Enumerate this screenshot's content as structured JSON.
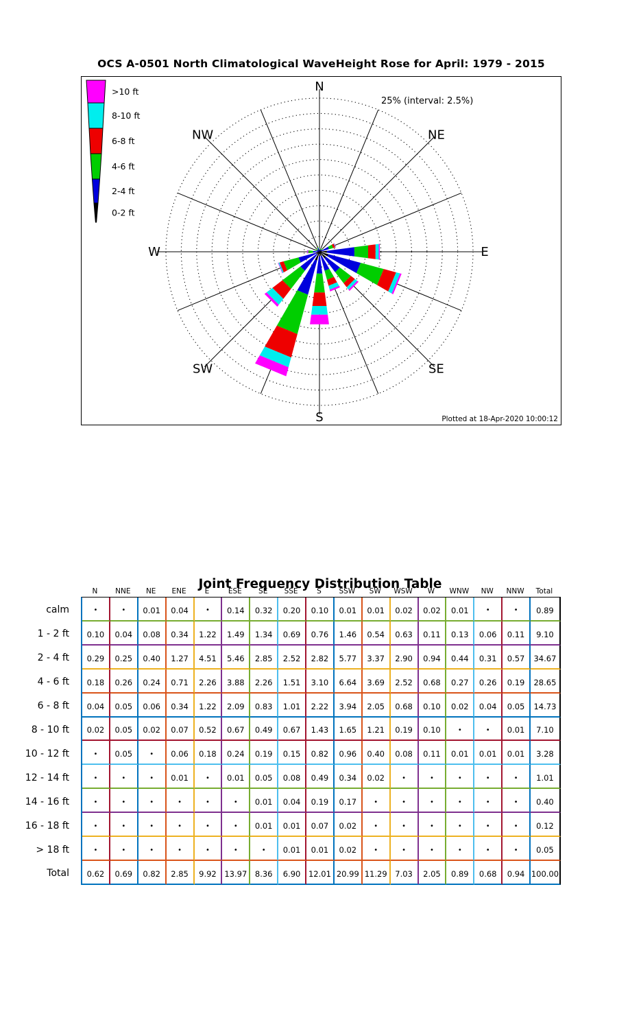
{
  "wave_rose": {
    "title": "OCS A-0501 North Climatological WaveHeight Rose for April: 1979 - 2015",
    "scale_label": "25% (interval: 2.5%)",
    "plotted_at": "Plotted at 18-Apr-2020 10:00:12",
    "compass_labels": [
      "N",
      "NE",
      "E",
      "SE",
      "S",
      "SW",
      "W",
      "NW"
    ]
  },
  "chart_data": {
    "type": "windrose+table",
    "table_title": "Joint Frequency Distribution Table",
    "directions": [
      "N",
      "NNE",
      "NE",
      "ENE",
      "E",
      "ESE",
      "SE",
      "SSE",
      "S",
      "SSW",
      "SW",
      "WSW",
      "W",
      "WNW",
      "NW",
      "NNW"
    ],
    "total_label": "Total",
    "less_than_marker": "•",
    "rows": [
      {
        "label": "calm",
        "cells": [
          "•",
          "•",
          "0.01",
          "0.04",
          "•",
          "0.14",
          "0.32",
          "0.20",
          "0.10",
          "0.01",
          "0.01",
          "0.02",
          "0.02",
          "0.01",
          "•",
          "•"
        ],
        "total": "0.89"
      },
      {
        "label": "1 - 2 ft",
        "cells": [
          "0.10",
          "0.04",
          "0.08",
          "0.34",
          "1.22",
          "1.49",
          "1.34",
          "0.69",
          "0.76",
          "1.46",
          "0.54",
          "0.63",
          "0.11",
          "0.13",
          "0.06",
          "0.11"
        ],
        "total": "9.10"
      },
      {
        "label": "2 - 4 ft",
        "cells": [
          "0.29",
          "0.25",
          "0.40",
          "1.27",
          "4.51",
          "5.46",
          "2.85",
          "2.52",
          "2.82",
          "5.77",
          "3.37",
          "2.90",
          "0.94",
          "0.44",
          "0.31",
          "0.57"
        ],
        "total": "34.67"
      },
      {
        "label": "4 - 6 ft",
        "cells": [
          "0.18",
          "0.26",
          "0.24",
          "0.71",
          "2.26",
          "3.88",
          "2.26",
          "1.51",
          "3.10",
          "6.64",
          "3.69",
          "2.52",
          "0.68",
          "0.27",
          "0.26",
          "0.19"
        ],
        "total": "28.65"
      },
      {
        "label": "6 - 8 ft",
        "cells": [
          "0.04",
          "0.05",
          "0.06",
          "0.34",
          "1.22",
          "2.09",
          "0.83",
          "1.01",
          "2.22",
          "3.94",
          "2.05",
          "0.68",
          "0.10",
          "0.02",
          "0.04",
          "0.05"
        ],
        "total": "14.73"
      },
      {
        "label": "8 - 10 ft",
        "cells": [
          "0.02",
          "0.05",
          "0.02",
          "0.07",
          "0.52",
          "0.67",
          "0.49",
          "0.67",
          "1.43",
          "1.65",
          "1.21",
          "0.19",
          "0.10",
          "•",
          "•",
          "0.01"
        ],
        "total": "7.10"
      },
      {
        "label": "10 - 12 ft",
        "cells": [
          "•",
          "0.05",
          "•",
          "0.06",
          "0.18",
          "0.24",
          "0.19",
          "0.15",
          "0.82",
          "0.96",
          "0.40",
          "0.08",
          "0.11",
          "0.01",
          "0.01",
          "0.01"
        ],
        "total": "3.28"
      },
      {
        "label": "12 - 14 ft",
        "cells": [
          "•",
          "•",
          "•",
          "0.01",
          "•",
          "0.01",
          "0.05",
          "0.08",
          "0.49",
          "0.34",
          "0.02",
          "•",
          "•",
          "•",
          "•",
          "•"
        ],
        "total": "1.01"
      },
      {
        "label": "14 - 16 ft",
        "cells": [
          "•",
          "•",
          "•",
          "•",
          "•",
          "•",
          "0.01",
          "0.04",
          "0.19",
          "0.17",
          "•",
          "•",
          "•",
          "•",
          "•",
          "•"
        ],
        "total": "0.40"
      },
      {
        "label": "16 - 18 ft",
        "cells": [
          "•",
          "•",
          "•",
          "•",
          "•",
          "•",
          "0.01",
          "0.01",
          "0.07",
          "0.02",
          "•",
          "•",
          "•",
          "•",
          "•",
          "•"
        ],
        "total": "0.12"
      },
      {
        "label": "> 18 ft",
        "cells": [
          "•",
          "•",
          "•",
          "•",
          "•",
          "•",
          "•",
          "0.01",
          "0.01",
          "0.02",
          "•",
          "•",
          "•",
          "•",
          "•",
          "•"
        ],
        "total": "0.05"
      },
      {
        "label": "Total",
        "cells": [
          "0.62",
          "0.69",
          "0.82",
          "2.85",
          "9.92",
          "13.97",
          "8.36",
          "6.90",
          "12.01",
          "20.99",
          "11.29",
          "7.03",
          "2.05",
          "0.89",
          "0.68",
          "0.94"
        ],
        "total": "100.00"
      }
    ],
    "rose": {
      "ring_max_pct": 25,
      "ring_interval_pct": 2.5,
      "ring_count": 10,
      "petal_half_angle_deg": 7.5,
      "bins": [
        {
          "label": "0-2 ft",
          "color": "#000000",
          "row_indices": [
            1
          ]
        },
        {
          "label": "2-4 ft",
          "color": "#0000DD",
          "row_indices": [
            2
          ]
        },
        {
          "label": "4-6 ft",
          "color": "#00CE00",
          "row_indices": [
            3
          ]
        },
        {
          "label": "6-8 ft",
          "color": "#EE0000",
          "row_indices": [
            4
          ]
        },
        {
          "label": "8-10 ft",
          "color": "#00EEEE",
          "row_indices": [
            5
          ]
        },
        {
          "label": ">10 ft",
          "color": "#FF00FF",
          "row_indices": [
            6,
            7,
            8,
            9,
            10
          ]
        }
      ]
    },
    "grid_colors": {
      "vertical": [
        "#0072BD",
        "#A2142F",
        "#0072BD",
        "#D95319",
        "#EDB120",
        "#7E2F8E",
        "#77AC30",
        "#4DBEEE",
        "#A2142F",
        "#0072BD",
        "#D95319",
        "#EDB120",
        "#7E2F8E",
        "#77AC30",
        "#4DBEEE",
        "#A2142F",
        "#0072BD",
        "#000000"
      ],
      "horizontal": [
        "#000000",
        "#77AC30",
        "#7E2F8E",
        "#EDB120",
        "#D95319",
        "#0072BD",
        "#A2142F",
        "#4DBEEE",
        "#77AC30",
        "#7E2F8E",
        "#EDB120",
        "#D95319",
        "#0072BD"
      ]
    }
  }
}
